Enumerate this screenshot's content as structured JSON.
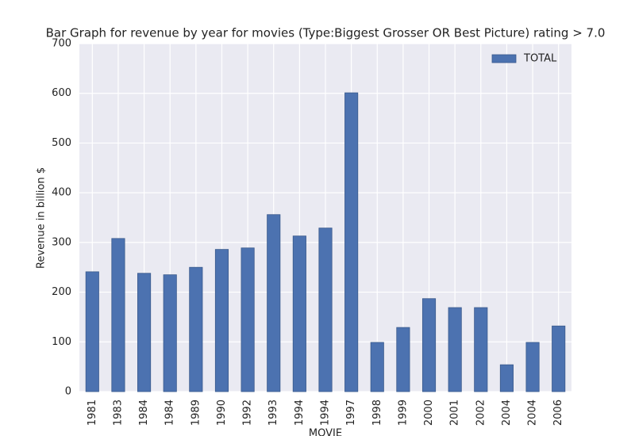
{
  "chart_data": {
    "type": "bar",
    "title": "Bar Graph for revenue by year for movies (Type:Biggest Grosser OR Best Picture) rating > 7.0",
    "x_label": "MOVIE",
    "y_label": "Revenue in billion $",
    "categories": [
      "1981",
      "1983",
      "1984",
      "1984",
      "1989",
      "1990",
      "1992",
      "1993",
      "1994",
      "1994",
      "1997",
      "1998",
      "1999",
      "2000",
      "2001",
      "2002",
      "2004",
      "2004",
      "2006"
    ],
    "series": [
      {
        "name": "TOTAL",
        "color": "#4c72b0",
        "values": [
          241,
          308,
          238,
          235,
          250,
          286,
          289,
          356,
          313,
          329,
          601,
          99,
          129,
          187,
          169,
          169,
          54,
          99,
          132
        ]
      }
    ],
    "ylim": [
      0,
      700
    ],
    "yticks": [
      0,
      100,
      200,
      300,
      400,
      500,
      600,
      700
    ],
    "grid": true,
    "legend": "upper right"
  }
}
